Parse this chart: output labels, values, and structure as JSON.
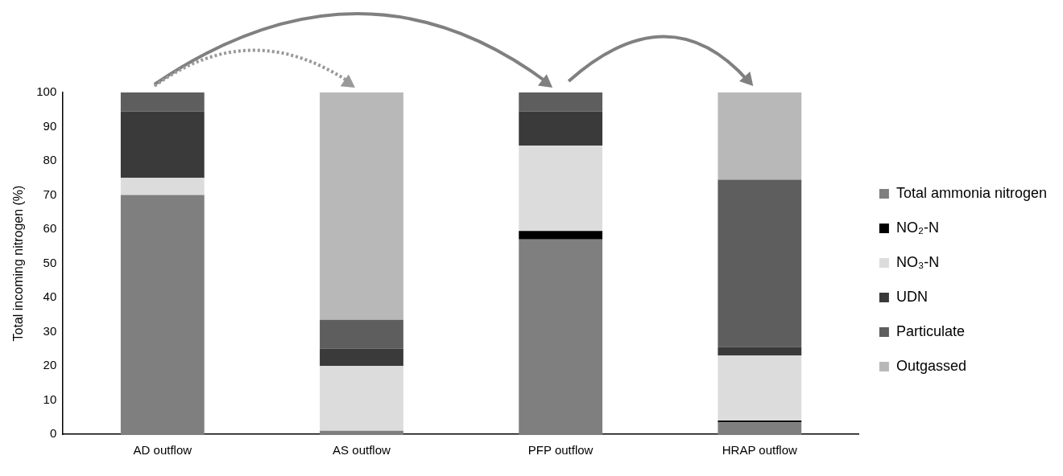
{
  "chart_data": {
    "type": "bar",
    "stacked": true,
    "ylabel": "Total incoming nitrogen (%)",
    "categories": [
      "AD outflow",
      "AS outflow",
      "PFP outflow",
      "HRAP outflow"
    ],
    "series": [
      {
        "name": "Total ammonia nitrogen",
        "color": "#7f7f7f",
        "values": [
          70,
          1,
          57,
          3.5
        ]
      },
      {
        "name": "NO₂-N",
        "color": "#000000",
        "values": [
          0,
          0,
          2.5,
          0.5
        ]
      },
      {
        "name": "NO₃-N",
        "color": "#dcdcdc",
        "values": [
          5,
          19,
          25,
          19
        ]
      },
      {
        "name": "UDN",
        "color": "#3a3a3a",
        "values": [
          19.5,
          5,
          10,
          2.5
        ]
      },
      {
        "name": "Particulate",
        "color": "#5e5e5e",
        "values": [
          5.5,
          8.5,
          5.5,
          49
        ]
      },
      {
        "name": "Outgassed",
        "color": "#b8b8b8",
        "values": [
          0,
          66.5,
          0,
          25.5
        ]
      }
    ],
    "ylim": [
      0,
      100
    ],
    "yticks": [
      0,
      10,
      20,
      30,
      40,
      50,
      60,
      70,
      80,
      90,
      100
    ],
    "grid": false,
    "legend": "right"
  }
}
